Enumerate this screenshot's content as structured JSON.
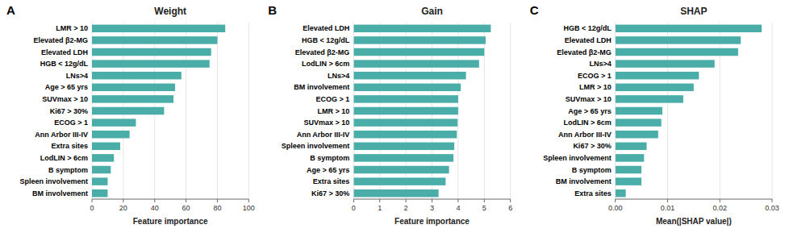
{
  "chart_data": [
    {
      "type": "bar",
      "orientation": "horizontal",
      "title": "Weight",
      "xlabel": "Feature importance",
      "annotations": [
        "A"
      ],
      "color": "#4aada8",
      "categories": [
        "LMR > 10",
        "Elevated β2-MG",
        "Elevated LDH",
        "HGB < 12g/dL",
        "LNs>4",
        "Age > 65 yrs",
        "SUVmax > 10",
        "Ki67 > 30%",
        "ECOG > 1",
        "Ann Arbor III-IV",
        "Extra sites",
        "LodLIN > 6cm",
        "B symptom",
        "Spleen involvement",
        "BM involvement"
      ],
      "values": [
        85,
        80,
        76,
        75,
        57,
        53,
        52,
        46,
        28,
        24,
        18,
        14,
        12,
        10,
        10
      ],
      "xlim": [
        0,
        100
      ],
      "xticks": [
        0,
        20,
        40,
        60,
        80,
        100
      ]
    },
    {
      "type": "bar",
      "orientation": "horizontal",
      "title": "Gain",
      "xlabel": "Feature importance",
      "annotations": [
        "B"
      ],
      "color": "#4aada8",
      "categories": [
        "Elevated LDH",
        "HGB < 12g/dL",
        "Elevated β2-MG",
        "LodLIN > 6cm",
        "LNs>4",
        "BM involvement",
        "ECOG > 1",
        "LMR > 10",
        "SUVmax > 10",
        "Ann Arbor III-IV",
        "Spleen involvement",
        "B symptom",
        "Age > 65 yrs",
        "Extra sites",
        "Ki67 > 30%"
      ],
      "values": [
        5.25,
        5.05,
        5.0,
        4.8,
        4.3,
        4.1,
        4.0,
        4.0,
        3.98,
        3.95,
        3.85,
        3.82,
        3.65,
        3.52,
        3.25
      ],
      "xlim": [
        0,
        6
      ],
      "xticks": [
        0,
        1,
        2,
        3,
        4,
        5,
        6
      ]
    },
    {
      "type": "bar",
      "orientation": "horizontal",
      "title": "SHAP",
      "xlabel": "Mean(|SHAP value|)",
      "annotations": [
        "C"
      ],
      "color": "#4aada8",
      "categories": [
        "HGB < 12g/dL",
        "Elevated LDH",
        "Elevated β2-MG",
        "LNs>4",
        "ECOG > 1",
        "LMR > 10",
        "SUVmax > 10",
        "Age > 65 yrs",
        "LodLIN > 6cm",
        "Ann Arbor III-IV",
        "Ki67 > 30%",
        "Spleen involvement",
        "B symptom",
        "BM involvement",
        "Extra sites"
      ],
      "values": [
        0.028,
        0.024,
        0.0235,
        0.019,
        0.016,
        0.015,
        0.013,
        0.009,
        0.0088,
        0.0082,
        0.006,
        0.0055,
        0.005,
        0.005,
        0.002
      ],
      "xlim": [
        0,
        0.03
      ],
      "xticks": [
        {
          "value": 0,
          "label": "0.00"
        },
        0.01,
        0.02,
        0.03
      ]
    }
  ]
}
